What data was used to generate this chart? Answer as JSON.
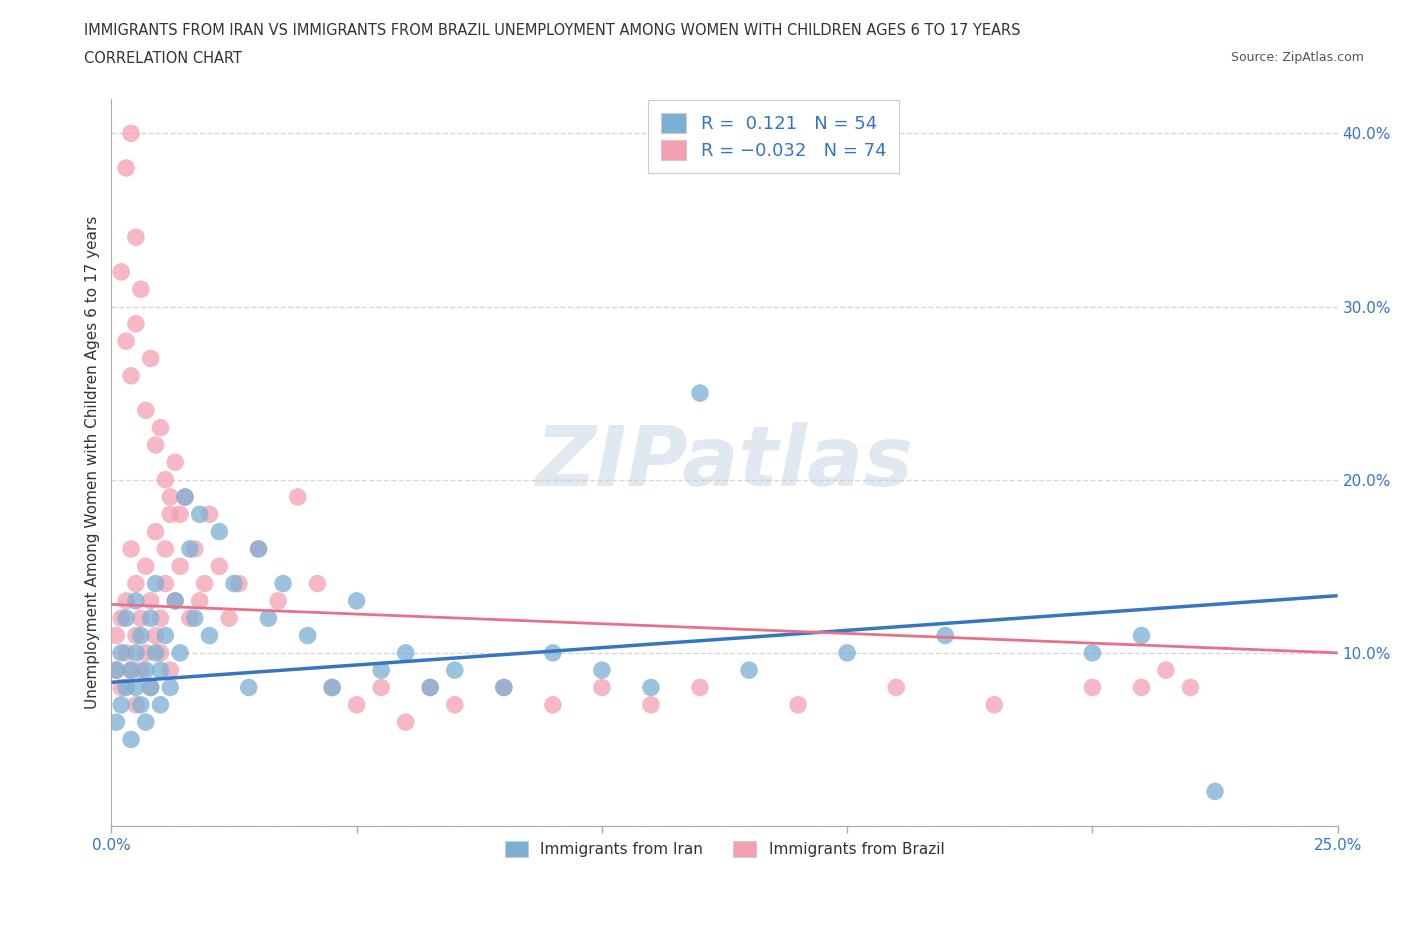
{
  "title_line1": "IMMIGRANTS FROM IRAN VS IMMIGRANTS FROM BRAZIL UNEMPLOYMENT AMONG WOMEN WITH CHILDREN AGES 6 TO 17 YEARS",
  "title_line2": "CORRELATION CHART",
  "source_text": "Source: ZipAtlas.com",
  "ylabel": "Unemployment Among Women with Children Ages 6 to 17 years",
  "xlim": [
    0.0,
    0.25
  ],
  "ylim": [
    0.0,
    0.42
  ],
  "xticks": [
    0.0,
    0.05,
    0.1,
    0.15,
    0.2,
    0.25
  ],
  "xticklabels": [
    "0.0%",
    "",
    "",
    "",
    "",
    "25.0%"
  ],
  "yticks": [
    0.0,
    0.1,
    0.2,
    0.3,
    0.4
  ],
  "yticklabels": [
    "",
    "10.0%",
    "20.0%",
    "30.0%",
    "40.0%"
  ],
  "iran_color": "#7bafd4",
  "brazil_color": "#f4a0b0",
  "iran_line_color": "#3575c2",
  "brazil_line_color": "#e8718a",
  "iran_R": 0.121,
  "iran_N": 54,
  "brazil_R": -0.032,
  "brazil_N": 74,
  "watermark": "ZIPatlas",
  "iran_x": [
    0.001,
    0.001,
    0.002,
    0.002,
    0.003,
    0.003,
    0.004,
    0.004,
    0.005,
    0.005,
    0.005,
    0.006,
    0.006,
    0.007,
    0.007,
    0.008,
    0.008,
    0.009,
    0.009,
    0.01,
    0.01,
    0.011,
    0.012,
    0.013,
    0.014,
    0.015,
    0.016,
    0.017,
    0.018,
    0.02,
    0.022,
    0.025,
    0.028,
    0.03,
    0.032,
    0.035,
    0.04,
    0.045,
    0.05,
    0.055,
    0.06,
    0.065,
    0.07,
    0.08,
    0.09,
    0.1,
    0.11,
    0.12,
    0.13,
    0.15,
    0.17,
    0.2,
    0.21,
    0.225
  ],
  "iran_y": [
    0.09,
    0.06,
    0.1,
    0.07,
    0.08,
    0.12,
    0.09,
    0.05,
    0.1,
    0.08,
    0.13,
    0.07,
    0.11,
    0.09,
    0.06,
    0.12,
    0.08,
    0.1,
    0.14,
    0.09,
    0.07,
    0.11,
    0.08,
    0.13,
    0.1,
    0.19,
    0.16,
    0.12,
    0.18,
    0.11,
    0.17,
    0.14,
    0.08,
    0.16,
    0.12,
    0.14,
    0.11,
    0.08,
    0.13,
    0.09,
    0.1,
    0.08,
    0.09,
    0.08,
    0.1,
    0.09,
    0.08,
    0.25,
    0.09,
    0.1,
    0.11,
    0.1,
    0.11,
    0.02
  ],
  "brazil_x": [
    0.001,
    0.001,
    0.002,
    0.002,
    0.003,
    0.003,
    0.004,
    0.004,
    0.005,
    0.005,
    0.005,
    0.006,
    0.006,
    0.007,
    0.007,
    0.008,
    0.008,
    0.009,
    0.009,
    0.01,
    0.01,
    0.011,
    0.011,
    0.012,
    0.012,
    0.013,
    0.014,
    0.015,
    0.016,
    0.017,
    0.018,
    0.019,
    0.02,
    0.022,
    0.024,
    0.026,
    0.03,
    0.034,
    0.038,
    0.042,
    0.045,
    0.05,
    0.055,
    0.06,
    0.065,
    0.07,
    0.08,
    0.09,
    0.1,
    0.11,
    0.12,
    0.14,
    0.16,
    0.18,
    0.2,
    0.21,
    0.215,
    0.22,
    0.003,
    0.004,
    0.005,
    0.002,
    0.003,
    0.004,
    0.005,
    0.006,
    0.007,
    0.008,
    0.009,
    0.01,
    0.011,
    0.012,
    0.013,
    0.014
  ],
  "brazil_y": [
    0.09,
    0.11,
    0.12,
    0.08,
    0.1,
    0.13,
    0.16,
    0.09,
    0.11,
    0.07,
    0.14,
    0.12,
    0.09,
    0.15,
    0.1,
    0.13,
    0.08,
    0.11,
    0.17,
    0.1,
    0.12,
    0.16,
    0.14,
    0.18,
    0.09,
    0.13,
    0.15,
    0.19,
    0.12,
    0.16,
    0.13,
    0.14,
    0.18,
    0.15,
    0.12,
    0.14,
    0.16,
    0.13,
    0.19,
    0.14,
    0.08,
    0.07,
    0.08,
    0.06,
    0.08,
    0.07,
    0.08,
    0.07,
    0.08,
    0.07,
    0.08,
    0.07,
    0.08,
    0.07,
    0.08,
    0.08,
    0.09,
    0.08,
    0.38,
    0.4,
    0.34,
    0.32,
    0.28,
    0.26,
    0.29,
    0.31,
    0.24,
    0.27,
    0.22,
    0.23,
    0.2,
    0.19,
    0.21,
    0.18
  ]
}
